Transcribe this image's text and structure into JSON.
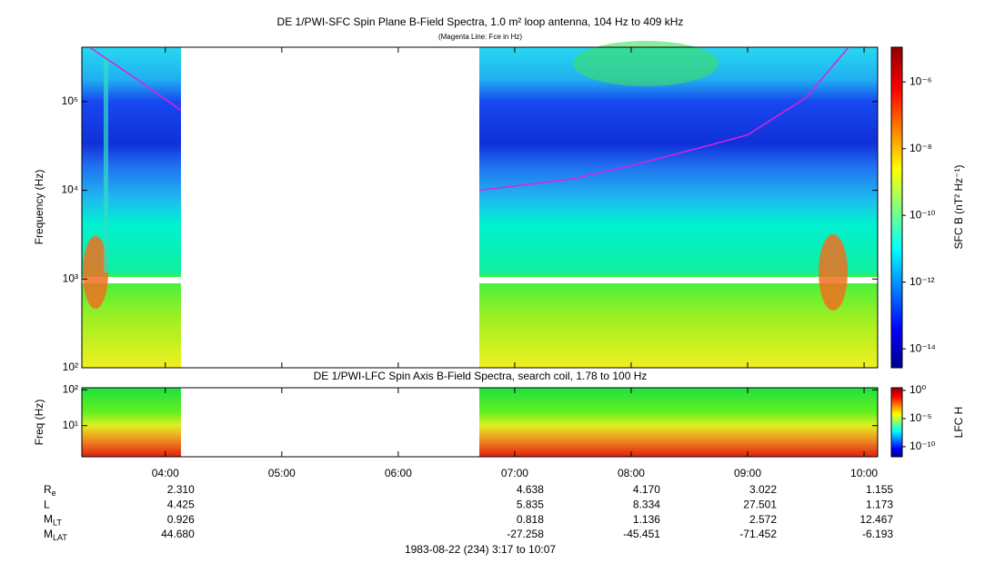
{
  "chart_data": [
    {
      "type": "spectrogram",
      "title": "DE 1/PWI-SFC  Spin Plane B-Field Spectra, 1.0 m² loop antenna, 104 Hz to 409 kHz",
      "subtitle": "(Magenta Line: Fce in Hz)",
      "y_label": "Frequency (Hz)",
      "log_scale": true,
      "ylim": [
        100,
        409000
      ],
      "yticks": [
        {
          "value": 100,
          "label": "10²"
        },
        {
          "value": 1000,
          "label": "10³"
        },
        {
          "value": 10000,
          "label": "10⁴"
        },
        {
          "value": 100000,
          "label": "10⁵"
        }
      ],
      "xlim": [
        "03:17",
        "10:07"
      ],
      "xticks": [
        "04:00",
        "05:00",
        "06:00",
        "07:00",
        "08:00",
        "09:00",
        "10:00"
      ],
      "colorbar_label": "SFC B (nT² Hz⁻¹)",
      "clim": [
        2.7e-15,
        1.1e-05
      ],
      "cticks": [
        {
          "value": 1e-06,
          "label": "10⁻⁶"
        },
        {
          "value": 1e-08,
          "label": "10⁻⁸"
        },
        {
          "value": 1e-10,
          "label": "10⁻¹⁰"
        },
        {
          "value": 1e-12,
          "label": "10⁻¹²"
        },
        {
          "value": 1e-14,
          "label": "10⁻¹⁴"
        }
      ],
      "series": [
        {
          "name": "Fce",
          "color": "#e020e0",
          "x": [
            "03:21",
            "03:45",
            "04:08",
            "05:30",
            "06:42",
            "07:30",
            "08:00",
            "08:30",
            "09:00",
            "09:30",
            "09:52"
          ],
          "values": [
            409000,
            180000,
            80000,
            null,
            10000,
            13500,
            19000,
            28000,
            42000,
            110000,
            409000
          ]
        }
      ]
    },
    {
      "type": "spectrogram",
      "title": "DE 1/PWI-LFC  Spin Axis B-Field Spectra, search coil, 1.78 to 100 Hz",
      "y_label": "Freq (Hz)",
      "log_scale": true,
      "ylim": [
        1.35,
        115
      ],
      "yticks": [
        {
          "value": 10,
          "label": "10¹"
        },
        {
          "value": 100,
          "label": "10²"
        }
      ],
      "xlim": [
        "03:17",
        "10:07"
      ],
      "colorbar_label": "LFC H",
      "clim": [
        1.6e-12,
        3
      ],
      "cticks": [
        {
          "value": 1,
          "label": "10⁰"
        },
        {
          "value": 1e-05,
          "label": "10⁻⁵"
        },
        {
          "value": 1e-10,
          "label": "10⁻¹⁰"
        }
      ]
    }
  ],
  "ephemeris": {
    "rows": [
      {
        "label": "R",
        "sub": "e",
        "values": [
          "2.310",
          null,
          null,
          "4.638",
          "4.170",
          "3.022",
          "1.155"
        ]
      },
      {
        "label": "L",
        "values": [
          "4.425",
          null,
          null,
          "5.835",
          "8.334",
          "27.501",
          "1.173"
        ]
      },
      {
        "label": "M",
        "sub": "LT",
        "values": [
          "0.926",
          null,
          null,
          "0.818",
          "1.136",
          "2.572",
          "12.467"
        ]
      },
      {
        "label": "M",
        "sub": "LAT",
        "values": [
          "44.680",
          null,
          null,
          "-27.258",
          "-45.451",
          "-71.452",
          "-6.193"
        ]
      }
    ],
    "footer": "1983-08-22 (234) 3:17 to 10:07"
  }
}
